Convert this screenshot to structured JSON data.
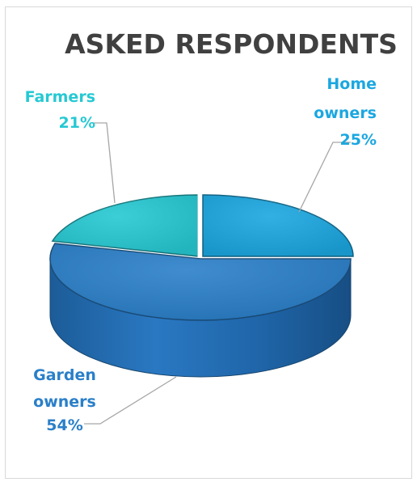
{
  "chart_data": {
    "type": "pie",
    "style": "3d-exploded",
    "title": "ASKED RESPONDENTS",
    "legend": "none",
    "slices": [
      {
        "label_lines": [
          "Home",
          "owners"
        ],
        "value": 25,
        "value_text": "25%",
        "color": "#1ba7e0",
        "label_color": "#1ba7e0"
      },
      {
        "label_lines": [
          "Garden",
          "owners"
        ],
        "value": 54,
        "value_text": "54%",
        "color": "#2a7fc9",
        "label_color": "#2a7fc9"
      },
      {
        "label_lines": [
          "Farmers"
        ],
        "value": 21,
        "value_text": "21%",
        "color": "#26c9d3",
        "label_color": "#26c9d3"
      }
    ]
  }
}
